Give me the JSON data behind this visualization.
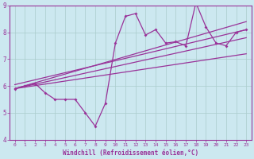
{
  "xlabel": "Windchill (Refroidissement éolien,°C)",
  "ylabel": "",
  "background_color": "#cce8f0",
  "grid_color": "#aacccc",
  "line_color": "#993399",
  "xlim": [
    -0.5,
    23.5
  ],
  "ylim": [
    4,
    9
  ],
  "xtick_labels": [
    "0",
    "1",
    "2",
    "3",
    "4",
    "5",
    "6",
    "7",
    "8",
    "9",
    "10",
    "11",
    "12",
    "13",
    "14",
    "15",
    "16",
    "17",
    "18",
    "19",
    "20",
    "21",
    "22",
    "23"
  ],
  "xtick_vals": [
    0,
    1,
    2,
    3,
    4,
    5,
    6,
    7,
    8,
    9,
    10,
    11,
    12,
    13,
    14,
    15,
    16,
    17,
    18,
    19,
    20,
    21,
    22,
    23
  ],
  "yticks": [
    4,
    5,
    6,
    7,
    8,
    9
  ],
  "series1_x": [
    0,
    1,
    2,
    3,
    4,
    5,
    6,
    7,
    8,
    9,
    10,
    11,
    12,
    13,
    14,
    15,
    16,
    17,
    18,
    19,
    20,
    21,
    22,
    23
  ],
  "series1_y": [
    5.9,
    6.0,
    6.1,
    5.75,
    5.5,
    5.5,
    5.5,
    5.0,
    4.5,
    5.35,
    7.6,
    8.6,
    8.7,
    7.9,
    8.1,
    7.6,
    7.65,
    7.5,
    9.1,
    8.2,
    7.6,
    7.5,
    8.0,
    8.1
  ],
  "series2_x": [
    0,
    23
  ],
  "series2_y": [
    5.9,
    8.4
  ],
  "series3_x": [
    0,
    23
  ],
  "series3_y": [
    5.9,
    7.8
  ],
  "series4_x": [
    0,
    23
  ],
  "series4_y": [
    5.9,
    7.2
  ],
  "series5_x": [
    0,
    23
  ],
  "series5_y": [
    6.05,
    8.1
  ]
}
